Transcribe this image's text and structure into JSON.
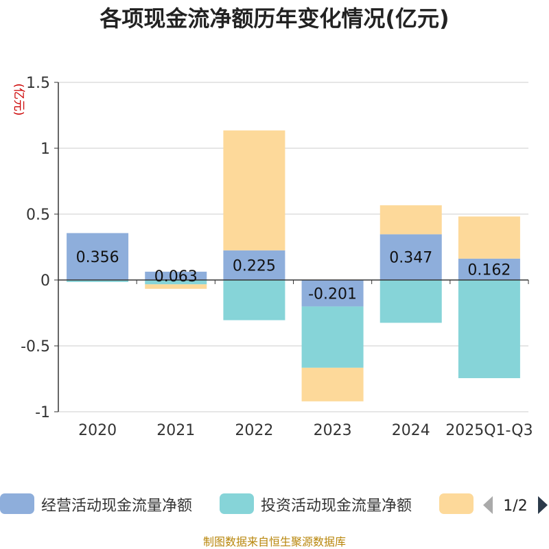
{
  "chart_data": {
    "type": "bar",
    "stacked": true,
    "title": "各项现金流净额历年变化情况(亿元)",
    "unit_label": "(亿元)",
    "categories": [
      "2020",
      "2021",
      "2022",
      "2023",
      "2024",
      "2025Q1-Q3"
    ],
    "ylim": [
      -1,
      1.5
    ],
    "yticks": [
      1.5,
      1,
      0.5,
      0,
      -0.5,
      -1
    ],
    "ytick_labels": [
      "1.5",
      "1",
      "0.5",
      "0",
      "-0.5",
      "-1"
    ],
    "grid": true,
    "series": [
      {
        "name": "经营活动现金流量净额",
        "color": "#8eaedb",
        "values": [
          0.356,
          0.063,
          0.225,
          -0.201,
          0.347,
          0.162
        ],
        "labels": [
          "0.356",
          "0.063",
          "0.225",
          "-0.201",
          "0.347",
          "0.162"
        ]
      },
      {
        "name": "投资活动现金流量净额",
        "color": "#86d4d8",
        "values": [
          -0.015,
          -0.033,
          -0.305,
          -0.465,
          -0.325,
          -0.745
        ]
      },
      {
        "name": "",
        "color": "#fdd99a",
        "values": [
          0,
          -0.034,
          0.91,
          -0.255,
          0.22,
          0.32
        ]
      }
    ],
    "legend_position": "bottom",
    "pager": "1/2"
  },
  "source": "制图数据来自恒生聚源数据库"
}
